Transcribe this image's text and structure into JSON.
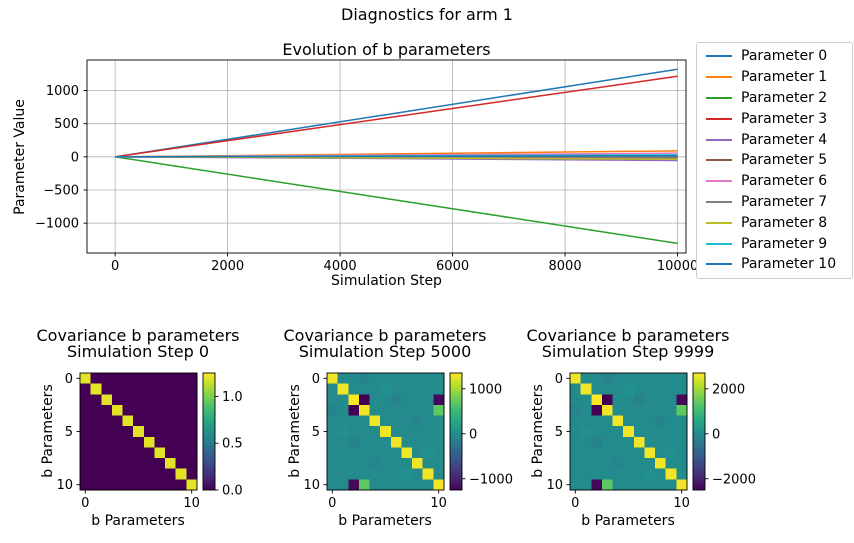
{
  "suptitle": "Diagnostics for arm 1",
  "chart_data": [
    {
      "type": "line",
      "title": "Evolution of b parameters",
      "xlabel": "Simulation Step",
      "ylabel": "Parameter Value",
      "grid": true,
      "xlim": [
        -500,
        10150
      ],
      "ylim": [
        -1450,
        1460
      ],
      "xticks": [
        {
          "v": 0,
          "l": "0"
        },
        {
          "v": 2000,
          "l": "2000"
        },
        {
          "v": 4000,
          "l": "4000"
        },
        {
          "v": 6000,
          "l": "6000"
        },
        {
          "v": 8000,
          "l": "8000"
        },
        {
          "v": 10000,
          "l": "10000"
        }
      ],
      "yticks": [
        {
          "v": -1000,
          "l": "−1000"
        },
        {
          "v": -500,
          "l": "−500"
        },
        {
          "v": 0,
          "l": "0"
        },
        {
          "v": 500,
          "l": "500"
        },
        {
          "v": 1000,
          "l": "1000"
        }
      ],
      "legend": {
        "position": "outside-right"
      },
      "x": [
        0,
        10000
      ],
      "series": [
        {
          "name": "Parameter 0",
          "color": "#1f77b4",
          "values": [
            0,
            1320
          ]
        },
        {
          "name": "Parameter 1",
          "color": "#ff7f0e",
          "values": [
            0,
            90
          ]
        },
        {
          "name": "Parameter 2",
          "color": "#2ca02c",
          "values": [
            0,
            -1305
          ]
        },
        {
          "name": "Parameter 3",
          "color": "#d62728",
          "values": [
            0,
            1215
          ]
        },
        {
          "name": "Parameter 4",
          "color": "#9467bd",
          "values": [
            0,
            -55
          ]
        },
        {
          "name": "Parameter 5",
          "color": "#8c564b",
          "values": [
            0,
            -20
          ]
        },
        {
          "name": "Parameter 6",
          "color": "#e377c2",
          "values": [
            0,
            55
          ]
        },
        {
          "name": "Parameter 7",
          "color": "#7f7f7f",
          "values": [
            0,
            -5
          ]
        },
        {
          "name": "Parameter 8",
          "color": "#bcbd22",
          "values": [
            0,
            -35
          ]
        },
        {
          "name": "Parameter 9",
          "color": "#17becf",
          "values": [
            0,
            30
          ]
        },
        {
          "name": "Parameter 10",
          "color": "#1f77b4",
          "values": [
            0,
            15
          ]
        }
      ]
    },
    {
      "type": "heatmap",
      "title_line1": "Covariance b parameters",
      "title_line2": "Simulation Step 0",
      "xlabel": "b Parameters",
      "ylabel": "b Parameters",
      "colormap": "viridis",
      "vmin": 0,
      "vmax": 1.25,
      "xticks": [
        {
          "v": 0,
          "l": "0"
        },
        {
          "v": 10,
          "l": "10"
        }
      ],
      "yticks": [
        {
          "v": 0,
          "l": "0"
        },
        {
          "v": 5,
          "l": "5"
        },
        {
          "v": 10,
          "l": "10"
        }
      ],
      "colorbar_ticks": [
        {
          "value": 1.0,
          "label": "1.0"
        },
        {
          "value": 0.5,
          "label": "0.5"
        },
        {
          "value": 0.0,
          "label": "0.0"
        }
      ],
      "matrix": [
        [
          1.2,
          0,
          0,
          0,
          0,
          0,
          0,
          0,
          0,
          0,
          0
        ],
        [
          0,
          1.2,
          0,
          0,
          0,
          0,
          0,
          0,
          0,
          0,
          0
        ],
        [
          0,
          0,
          1.2,
          0,
          0,
          0,
          0,
          0,
          0,
          0,
          0
        ],
        [
          0,
          0,
          0,
          1.2,
          0,
          0,
          0,
          0,
          0,
          0,
          0
        ],
        [
          0,
          0,
          0,
          0,
          1.2,
          0,
          0,
          0,
          0,
          0,
          0
        ],
        [
          0,
          0,
          0,
          0,
          0,
          1.2,
          0,
          0,
          0,
          0,
          0
        ],
        [
          0,
          0,
          0,
          0,
          0,
          0,
          1.2,
          0,
          0,
          0,
          0
        ],
        [
          0,
          0,
          0,
          0,
          0,
          0,
          0,
          1.2,
          0,
          0,
          0
        ],
        [
          0,
          0,
          0,
          0,
          0,
          0,
          0,
          0,
          1.2,
          0,
          0
        ],
        [
          0,
          0,
          0,
          0,
          0,
          0,
          0,
          0,
          0,
          1.2,
          0
        ],
        [
          0,
          0,
          0,
          0,
          0,
          0,
          0,
          0,
          0,
          0,
          1.2
        ]
      ]
    },
    {
      "type": "heatmap",
      "title_line1": "Covariance b parameters",
      "title_line2": "Simulation Step 5000",
      "xlabel": "b Parameters",
      "ylabel": "b Parameters",
      "colormap": "viridis",
      "vmin": -1250,
      "vmax": 1350,
      "xticks": [
        {
          "v": 0,
          "l": "0"
        },
        {
          "v": 10,
          "l": "10"
        }
      ],
      "yticks": [
        {
          "v": 0,
          "l": "0"
        },
        {
          "v": 5,
          "l": "5"
        },
        {
          "v": 10,
          "l": "10"
        }
      ],
      "colorbar_ticks": [
        {
          "value": 1000,
          "label": "1000"
        },
        {
          "value": 0,
          "label": "0"
        },
        {
          "value": -1000,
          "label": "−1000"
        }
      ],
      "matrix": [
        [
          1300,
          0,
          0,
          -70,
          0,
          0,
          0,
          0,
          0,
          0,
          0
        ],
        [
          0,
          1300,
          0,
          0,
          0,
          60,
          0,
          0,
          0,
          0,
          0
        ],
        [
          0,
          0,
          1350,
          -1250,
          0,
          0,
          -80,
          0,
          0,
          0,
          -1200
        ],
        [
          -70,
          0,
          -1250,
          1300,
          0,
          0,
          0,
          0,
          0,
          0,
          700
        ],
        [
          0,
          0,
          0,
          0,
          1300,
          0,
          0,
          0,
          -70,
          0,
          0
        ],
        [
          0,
          60,
          0,
          0,
          0,
          1300,
          0,
          0,
          0,
          0,
          0
        ],
        [
          0,
          0,
          -80,
          0,
          0,
          0,
          1300,
          0,
          0,
          0,
          0
        ],
        [
          0,
          0,
          0,
          0,
          0,
          0,
          0,
          1300,
          0,
          60,
          0
        ],
        [
          0,
          0,
          0,
          0,
          -70,
          0,
          0,
          0,
          1300,
          0,
          0
        ],
        [
          0,
          0,
          0,
          0,
          0,
          0,
          0,
          60,
          0,
          1300,
          0
        ],
        [
          0,
          0,
          -1200,
          700,
          0,
          0,
          0,
          0,
          0,
          0,
          1300
        ]
      ]
    },
    {
      "type": "heatmap",
      "title_line1": "Covariance b parameters",
      "title_line2": "Simulation Step 9999",
      "xlabel": "b Parameters",
      "ylabel": "b Parameters",
      "colormap": "viridis",
      "vmin": -2500,
      "vmax": 2700,
      "xticks": [
        {
          "v": 0,
          "l": "0"
        },
        {
          "v": 10,
          "l": "10"
        }
      ],
      "yticks": [
        {
          "v": 0,
          "l": "0"
        },
        {
          "v": 5,
          "l": "5"
        },
        {
          "v": 10,
          "l": "10"
        }
      ],
      "colorbar_ticks": [
        {
          "value": 2000,
          "label": "2000"
        },
        {
          "value": 0,
          "label": "0"
        },
        {
          "value": -2000,
          "label": "−2000"
        }
      ],
      "matrix": [
        [
          2600,
          0,
          0,
          -140,
          0,
          0,
          0,
          0,
          0,
          0,
          0
        ],
        [
          0,
          2600,
          0,
          0,
          0,
          120,
          0,
          0,
          0,
          0,
          0
        ],
        [
          0,
          0,
          2700,
          -2500,
          0,
          0,
          -160,
          0,
          0,
          0,
          -2400
        ],
        [
          -140,
          0,
          -2500,
          2600,
          0,
          0,
          0,
          0,
          0,
          0,
          1400
        ],
        [
          0,
          0,
          0,
          0,
          2600,
          0,
          0,
          0,
          -140,
          0,
          0
        ],
        [
          0,
          120,
          0,
          0,
          0,
          2600,
          0,
          0,
          0,
          0,
          0
        ],
        [
          0,
          0,
          -160,
          0,
          0,
          0,
          2600,
          0,
          0,
          0,
          0
        ],
        [
          0,
          0,
          0,
          0,
          0,
          0,
          0,
          2600,
          0,
          120,
          0
        ],
        [
          0,
          0,
          0,
          0,
          -140,
          0,
          0,
          0,
          2600,
          0,
          0
        ],
        [
          0,
          0,
          0,
          0,
          0,
          0,
          0,
          120,
          0,
          2600,
          0
        ],
        [
          0,
          0,
          -2400,
          1400,
          0,
          0,
          0,
          0,
          0,
          0,
          2600
        ]
      ]
    }
  ]
}
